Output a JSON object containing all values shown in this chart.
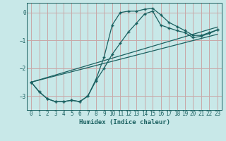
{
  "xlabel": "Humidex (Indice chaleur)",
  "background_color": "#c8e8e8",
  "grid_color": "#c8a8a8",
  "line_color": "#1a6060",
  "xlim": [
    -0.5,
    23.5
  ],
  "ylim": [
    -3.5,
    0.35
  ],
  "yticks": [
    0,
    -1,
    -2,
    -3
  ],
  "xticks": [
    0,
    1,
    2,
    3,
    4,
    5,
    6,
    7,
    8,
    9,
    10,
    11,
    12,
    13,
    14,
    15,
    16,
    17,
    18,
    19,
    20,
    21,
    22,
    23
  ],
  "curve1_x": [
    0,
    1,
    2,
    3,
    4,
    5,
    6,
    7,
    8,
    9,
    10,
    11,
    12,
    13,
    14,
    15,
    16,
    17,
    18,
    19,
    20,
    21,
    22,
    23
  ],
  "curve1_y": [
    -2.5,
    -2.85,
    -3.1,
    -3.2,
    -3.2,
    -3.15,
    -3.2,
    -3.0,
    -2.4,
    -1.6,
    -0.45,
    0.0,
    0.05,
    0.05,
    0.12,
    0.15,
    -0.08,
    -0.35,
    -0.5,
    -0.65,
    -0.82,
    -0.82,
    -0.72,
    -0.62
  ],
  "curve2_x": [
    0,
    1,
    2,
    3,
    4,
    5,
    6,
    7,
    8,
    9,
    10,
    11,
    12,
    13,
    14,
    15,
    16,
    17,
    18,
    19,
    20,
    21,
    22,
    23
  ],
  "curve2_y": [
    -2.5,
    -2.85,
    -3.1,
    -3.2,
    -3.2,
    -3.15,
    -3.2,
    -3.0,
    -2.45,
    -2.0,
    -1.5,
    -1.1,
    -0.7,
    -0.38,
    -0.05,
    0.05,
    -0.45,
    -0.55,
    -0.65,
    -0.72,
    -0.9,
    -0.85,
    -0.75,
    -0.62
  ],
  "line1_x": [
    0,
    23
  ],
  "line1_y": [
    -2.5,
    -0.52
  ],
  "line2_x": [
    0,
    23
  ],
  "line2_y": [
    -2.5,
    -0.78
  ]
}
